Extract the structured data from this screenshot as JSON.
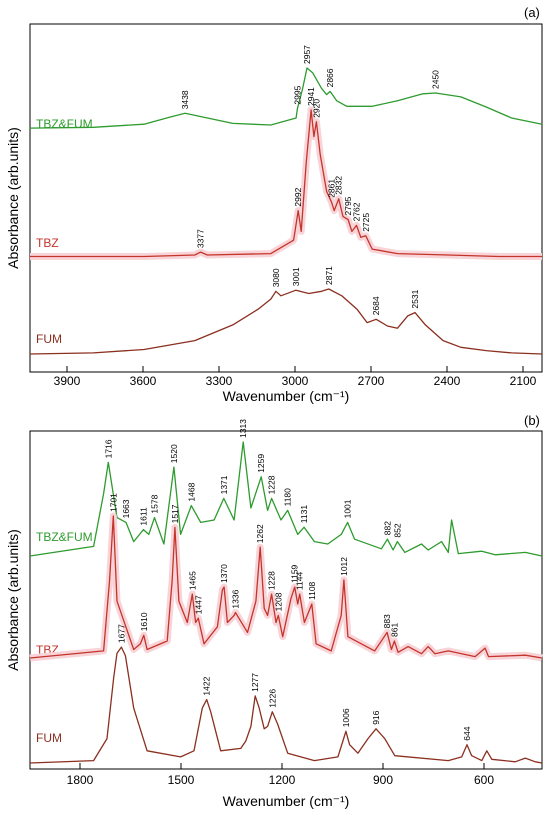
{
  "colors": {
    "green": "#2e9b2e",
    "red": "#c4342a",
    "brown": "#8b2f1f",
    "axis": "#000000",
    "highlight": "#f8d4d8"
  },
  "chart_data": [
    {
      "type": "line",
      "panel_label": "(a)",
      "xlabel": "Wavenumber (cm⁻¹)",
      "ylabel": "Absorbance (arb.units)",
      "xlim": [
        4050,
        2030
      ],
      "xticks": [
        3900,
        3600,
        3300,
        3000,
        2700,
        2400,
        2100
      ],
      "tick_labels": [
        "3900",
        "3600",
        "3300",
        "3000",
        "2700",
        "2400",
        "2100"
      ],
      "y_units": "arbitrary (offset traces)",
      "series": [
        {
          "name": "TBZ&FUM",
          "color": "green",
          "x": [
            4050,
            3800,
            3600,
            3500,
            3438,
            3380,
            3250,
            3100,
            3000,
            2995,
            2975,
            2957,
            2935,
            2900,
            2880,
            2866,
            2840,
            2800,
            2700,
            2600,
            2500,
            2450,
            2350,
            2250,
            2150,
            2030
          ],
          "y": [
            0.05,
            0.06,
            0.1,
            0.19,
            0.24,
            0.2,
            0.11,
            0.09,
            0.18,
            0.3,
            0.55,
            0.82,
            0.76,
            0.56,
            0.48,
            0.52,
            0.4,
            0.33,
            0.33,
            0.4,
            0.49,
            0.5,
            0.45,
            0.32,
            0.18,
            0.1
          ],
          "peak_labels": [
            {
              "x": 3438,
              "label": "3438"
            },
            {
              "x": 2995,
              "label": "2995"
            },
            {
              "x": 2957,
              "label": "2957"
            },
            {
              "x": 2866,
              "label": "2866"
            },
            {
              "x": 2450,
              "label": "2450"
            }
          ]
        },
        {
          "name": "TBZ",
          "color": "red",
          "x": [
            4050,
            3600,
            3400,
            3377,
            3350,
            3100,
            3010,
            2992,
            2980,
            2960,
            2941,
            2930,
            2920,
            2905,
            2880,
            2861,
            2850,
            2832,
            2815,
            2795,
            2780,
            2762,
            2745,
            2725,
            2700,
            2600,
            2400,
            2200,
            2030
          ],
          "y": [
            0.01,
            0.01,
            0.02,
            0.04,
            0.02,
            0.03,
            0.12,
            0.32,
            0.18,
            0.65,
            1.0,
            0.82,
            0.92,
            0.7,
            0.45,
            0.38,
            0.32,
            0.4,
            0.28,
            0.26,
            0.18,
            0.22,
            0.14,
            0.15,
            0.06,
            0.03,
            0.02,
            0.01,
            0.01
          ],
          "peak_labels": [
            {
              "x": 3377,
              "label": "3377"
            },
            {
              "x": 2992,
              "label": "2992"
            },
            {
              "x": 2941,
              "label": "2941"
            },
            {
              "x": 2920,
              "label": "2920"
            },
            {
              "x": 2861,
              "label": "2861"
            },
            {
              "x": 2832,
              "label": "2832"
            },
            {
              "x": 2795,
              "label": "2795"
            },
            {
              "x": 2762,
              "label": "2762"
            },
            {
              "x": 2725,
              "label": "2725"
            }
          ]
        },
        {
          "name": "FUM",
          "color": "brown",
          "x": [
            4050,
            3800,
            3600,
            3400,
            3250,
            3150,
            3100,
            3080,
            3060,
            3001,
            2950,
            2900,
            2871,
            2820,
            2760,
            2720,
            2684,
            2640,
            2600,
            2560,
            2531,
            2490,
            2420,
            2350,
            2250,
            2150,
            2030
          ],
          "y": [
            0.0,
            0.01,
            0.04,
            0.12,
            0.26,
            0.4,
            0.49,
            0.56,
            0.52,
            0.57,
            0.54,
            0.56,
            0.58,
            0.52,
            0.4,
            0.28,
            0.31,
            0.25,
            0.23,
            0.34,
            0.37,
            0.26,
            0.12,
            0.06,
            0.03,
            0.01,
            0.0
          ],
          "peak_labels": [
            {
              "x": 3080,
              "label": "3080"
            },
            {
              "x": 3001,
              "label": "3001"
            },
            {
              "x": 2871,
              "label": "2871"
            },
            {
              "x": 2684,
              "label": "2684"
            },
            {
              "x": 2531,
              "label": "2531"
            }
          ]
        }
      ]
    },
    {
      "type": "line",
      "panel_label": "(b)",
      "xlabel": "Wavenumber (cm⁻¹)",
      "ylabel": "Absorbance (arb.units)",
      "xlim": [
        1950,
        420
      ],
      "xticks": [
        1800,
        1500,
        1200,
        900,
        600
      ],
      "tick_labels": [
        "1800",
        "1500",
        "1200",
        "900",
        "600"
      ],
      "y_units": "arbitrary (offset traces)",
      "series": [
        {
          "name": "TBZ&FUM",
          "color": "green",
          "x": [
            1950,
            1760,
            1730,
            1716,
            1690,
            1663,
            1640,
            1611,
            1595,
            1578,
            1550,
            1520,
            1500,
            1468,
            1440,
            1400,
            1371,
            1340,
            1313,
            1290,
            1259,
            1240,
            1228,
            1200,
            1180,
            1150,
            1131,
            1100,
            1060,
            1020,
            1001,
            980,
            900,
            882,
            865,
            852,
            830,
            780,
            760,
            720,
            700,
            690,
            670,
            600,
            560,
            470,
            420
          ],
          "y": [
            0.0,
            0.08,
            0.52,
            0.78,
            0.32,
            0.28,
            0.12,
            0.22,
            0.18,
            0.32,
            0.1,
            0.74,
            0.18,
            0.42,
            0.28,
            0.3,
            0.48,
            0.3,
            0.95,
            0.4,
            0.66,
            0.38,
            0.48,
            0.3,
            0.38,
            0.18,
            0.24,
            0.12,
            0.1,
            0.18,
            0.28,
            0.14,
            0.06,
            0.14,
            0.05,
            0.12,
            0.03,
            0.1,
            0.05,
            0.12,
            0.03,
            0.3,
            0.02,
            0.04,
            0.01,
            0.03,
            0.0
          ],
          "peak_labels": [
            {
              "x": 1716,
              "label": "1716"
            },
            {
              "x": 1663,
              "label": "1663"
            },
            {
              "x": 1611,
              "label": "1611"
            },
            {
              "x": 1578,
              "label": "1578"
            },
            {
              "x": 1520,
              "label": "1520"
            },
            {
              "x": 1468,
              "label": "1468"
            },
            {
              "x": 1371,
              "label": "1371"
            },
            {
              "x": 1313,
              "label": "1313"
            },
            {
              "x": 1259,
              "label": "1259"
            },
            {
              "x": 1228,
              "label": "1228"
            },
            {
              "x": 1180,
              "label": "1180"
            },
            {
              "x": 1131,
              "label": "1131"
            },
            {
              "x": 1001,
              "label": "1001"
            },
            {
              "x": 882,
              "label": "882"
            },
            {
              "x": 852,
              "label": "852"
            }
          ]
        },
        {
          "name": "TBZ",
          "color": "red",
          "x": [
            1950,
            1730,
            1712,
            1701,
            1690,
            1640,
            1620,
            1610,
            1600,
            1540,
            1525,
            1517,
            1505,
            1480,
            1465,
            1455,
            1447,
            1430,
            1390,
            1375,
            1370,
            1360,
            1340,
            1336,
            1300,
            1275,
            1262,
            1250,
            1240,
            1228,
            1215,
            1208,
            1195,
            1170,
            1159,
            1150,
            1144,
            1130,
            1108,
            1095,
            1050,
            1020,
            1012,
            1000,
            920,
            883,
            870,
            861,
            850,
            820,
            780,
            760,
            740,
            700,
            620,
            590,
            580,
            470,
            420
          ],
          "y": [
            0.0,
            0.05,
            0.55,
            1.0,
            0.4,
            0.06,
            0.1,
            0.16,
            0.06,
            0.12,
            0.55,
            0.92,
            0.4,
            0.25,
            0.45,
            0.25,
            0.28,
            0.1,
            0.22,
            0.48,
            0.5,
            0.25,
            0.3,
            0.32,
            0.18,
            0.4,
            0.78,
            0.35,
            0.3,
            0.45,
            0.25,
            0.3,
            0.15,
            0.42,
            0.5,
            0.38,
            0.45,
            0.25,
            0.38,
            0.1,
            0.05,
            0.3,
            0.55,
            0.15,
            0.05,
            0.18,
            0.06,
            0.12,
            0.04,
            0.08,
            0.03,
            0.08,
            0.03,
            0.05,
            0.01,
            0.07,
            0.01,
            0.02,
            0.0
          ],
          "peak_labels": [
            {
              "x": 1701,
              "label": "1701"
            },
            {
              "x": 1610,
              "label": "1610"
            },
            {
              "x": 1517,
              "label": "1517"
            },
            {
              "x": 1465,
              "label": "1465"
            },
            {
              "x": 1447,
              "label": "1447"
            },
            {
              "x": 1370,
              "label": "1370"
            },
            {
              "x": 1336,
              "label": "1336"
            },
            {
              "x": 1262,
              "label": "1262"
            },
            {
              "x": 1228,
              "label": "1228"
            },
            {
              "x": 1208,
              "label": "1208"
            },
            {
              "x": 1159,
              "label": "1159"
            },
            {
              "x": 1144,
              "label": "1144"
            },
            {
              "x": 1108,
              "label": "1108"
            },
            {
              "x": 1012,
              "label": "1012"
            },
            {
              "x": 883,
              "label": "883"
            },
            {
              "x": 861,
              "label": "861"
            }
          ]
        },
        {
          "name": "FUM",
          "color": "brown",
          "x": [
            1950,
            1760,
            1720,
            1700,
            1690,
            1677,
            1665,
            1640,
            1600,
            1500,
            1460,
            1435,
            1422,
            1410,
            1380,
            1320,
            1305,
            1290,
            1277,
            1265,
            1250,
            1240,
            1226,
            1210,
            1180,
            1100,
            1030,
            1015,
            1006,
            995,
            970,
            940,
            916,
            890,
            860,
            700,
            660,
            644,
            630,
            600,
            585,
            570,
            500,
            470,
            440,
            420
          ],
          "y": [
            0.0,
            0.02,
            0.2,
            0.7,
            0.9,
            0.95,
            0.88,
            0.45,
            0.1,
            0.05,
            0.1,
            0.45,
            0.52,
            0.42,
            0.1,
            0.12,
            0.18,
            0.3,
            0.55,
            0.45,
            0.28,
            0.3,
            0.42,
            0.32,
            0.08,
            0.02,
            0.05,
            0.18,
            0.26,
            0.15,
            0.08,
            0.2,
            0.28,
            0.2,
            0.06,
            0.02,
            0.05,
            0.15,
            0.06,
            0.02,
            0.1,
            0.03,
            0.01,
            0.04,
            0.01,
            0.0
          ],
          "peak_labels": [
            {
              "x": 1677,
              "label": "1677"
            },
            {
              "x": 1422,
              "label": "1422"
            },
            {
              "x": 1277,
              "label": "1277"
            },
            {
              "x": 1226,
              "label": "1226"
            },
            {
              "x": 1006,
              "label": "1006"
            },
            {
              "x": 916,
              "label": "916"
            },
            {
              "x": 644,
              "label": "644"
            }
          ]
        }
      ]
    }
  ]
}
